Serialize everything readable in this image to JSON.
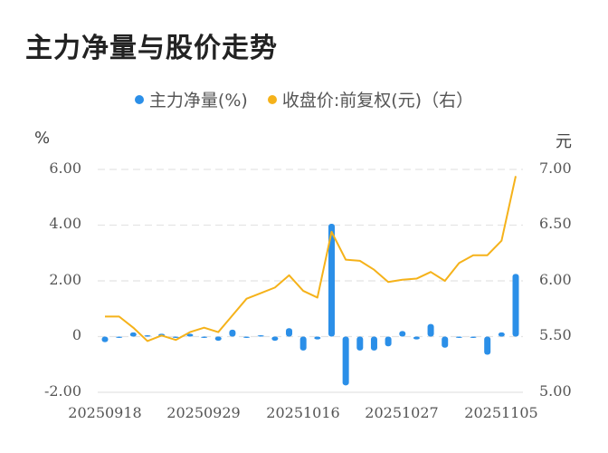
{
  "title": "主力净量与股价走势",
  "legend": [
    {
      "label": "主力净量(%)",
      "color": "#2b8fe8"
    },
    {
      "label": "收盘价:前复权(元)（右）",
      "color": "#f5b21a"
    }
  ],
  "axes": {
    "left_unit": "%",
    "right_unit": "元",
    "left_ticks": [
      "6.00",
      "4.00",
      "2.00",
      "0",
      "-2.00"
    ],
    "right_ticks": [
      "7.00",
      "6.50",
      "6.00",
      "5.50",
      "5.00"
    ],
    "x_ticks": [
      "20250918",
      "20250929",
      "20251016",
      "20251027",
      "20251105"
    ]
  },
  "chart_data": {
    "type": "bar+line",
    "title": "主力净量与股价走势",
    "xlabel": "",
    "ylabel": "%",
    "ylabel_right": "元",
    "ylim": [
      -2,
      6
    ],
    "ylim_right": [
      5,
      7
    ],
    "grid": true,
    "legend_position": "top",
    "x_tick_labels": [
      "20250918",
      "20250929",
      "20251016",
      "20251027",
      "20251105"
    ],
    "n_points": 30,
    "series": [
      {
        "name": "主力净量(%)",
        "type": "bar",
        "axis": "left",
        "color": "#2b8fe8",
        "values": [
          -0.2,
          -0.05,
          0.15,
          0.05,
          0.1,
          -0.02,
          0.1,
          -0.03,
          -0.15,
          0.25,
          -0.03,
          0.03,
          -0.15,
          0.3,
          -0.5,
          -0.1,
          4.05,
          -1.75,
          -0.5,
          -0.5,
          -0.35,
          0.2,
          -0.1,
          0.45,
          -0.4,
          -0.05,
          -0.05,
          -0.65,
          0.15,
          2.25
        ]
      },
      {
        "name": "收盘价:前复权(元)（右）",
        "type": "line",
        "axis": "right",
        "color": "#f5b21a",
        "values": [
          5.68,
          5.68,
          5.58,
          5.46,
          5.51,
          5.47,
          5.54,
          5.58,
          5.54,
          5.69,
          5.84,
          5.89,
          5.94,
          6.05,
          5.91,
          5.85,
          6.44,
          6.19,
          6.18,
          6.1,
          5.99,
          6.01,
          6.02,
          6.08,
          6.0,
          6.16,
          6.23,
          6.23,
          6.36,
          6.94
        ]
      }
    ]
  }
}
